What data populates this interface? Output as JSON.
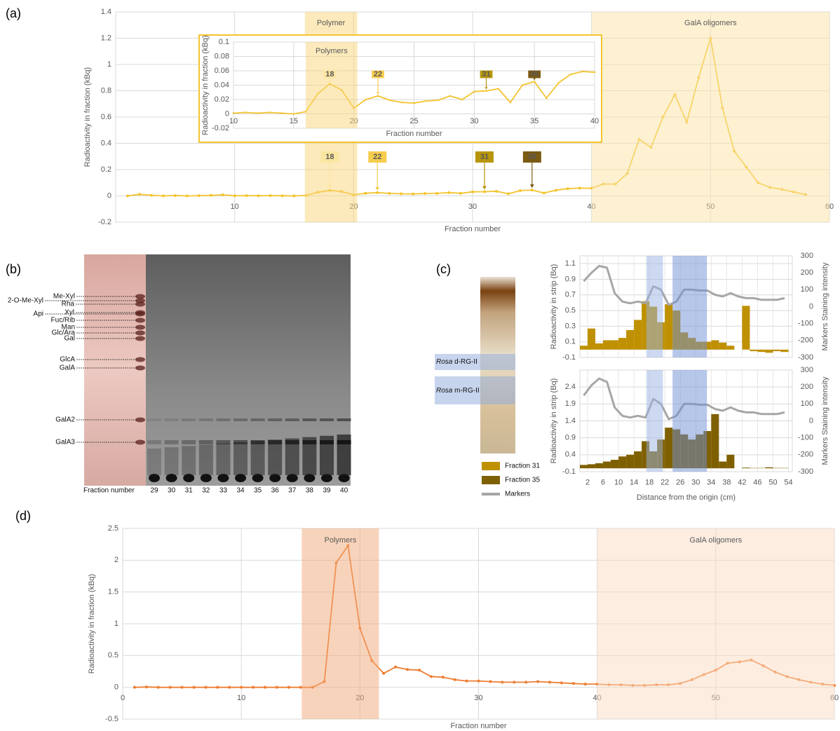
{
  "panels": {
    "labels": [
      "(a)",
      "(b)",
      "(c)",
      "(d)"
    ],
    "tlc": {
      "markers": [
        "Me-Xyl",
        "2-O-Me-Xyl",
        "Rha",
        "Xyl",
        "Api",
        "Fuc/Rib",
        "Man",
        "Glc/Ara",
        "Gal",
        "GlcA",
        "GalA",
        "GalA2",
        "GalA3"
      ],
      "x_label": "Fraction number",
      "lanes": [
        "29",
        "30",
        "31",
        "32",
        "33",
        "34",
        "35",
        "36",
        "37",
        "38",
        "39",
        "40"
      ]
    },
    "gel": {
      "bands": [
        {
          "italic": "Rosa",
          "text": "d-RG-II"
        },
        {
          "italic": "Rosa",
          "text": "m-RG-II"
        }
      ]
    }
  },
  "chart_data": [
    {
      "type": "line",
      "x_label": "Fraction number",
      "y_label": "Radioactivity in fraction (kBq)",
      "x": [
        1,
        2,
        3,
        4,
        5,
        6,
        7,
        8,
        9,
        10,
        11,
        12,
        13,
        14,
        15,
        16,
        17,
        18,
        19,
        20,
        21,
        22,
        23,
        24,
        25,
        26,
        27,
        28,
        29,
        30,
        31,
        32,
        33,
        34,
        35,
        36,
        37,
        38,
        39,
        40,
        41,
        42,
        43,
        44,
        45,
        46,
        47,
        48,
        49,
        50,
        51,
        52,
        53,
        54,
        55,
        56,
        57,
        58
      ],
      "series": [
        {
          "color": "#f4c430",
          "values": [
            0,
            0.012,
            0.005,
            0,
            0.003,
            0,
            0.002,
            0.004,
            0.008,
            0.001,
            0.002,
            0.001,
            0.002,
            0.001,
            0,
            0.003,
            0.028,
            0.042,
            0.033,
            0.008,
            0.02,
            0.025,
            0.019,
            0.016,
            0.015,
            0.018,
            0.019,
            0.025,
            0.02,
            0.031,
            0.032,
            0.035,
            0.016,
            0.04,
            0.045,
            0.022,
            0.043,
            0.055,
            0.059,
            0.058,
            0.09,
            0.09,
            0.17,
            0.43,
            0.37,
            0.6,
            0.77,
            0.56,
            0.9,
            1.2,
            0.67,
            0.34,
            0.22,
            0.1,
            0.065,
            0.05,
            0.03,
            0.01
          ]
        }
      ],
      "xlim": [
        0,
        60
      ],
      "ylim": [
        -0.2,
        1.4
      ],
      "xticks": [
        10,
        20,
        30,
        40,
        50,
        60
      ],
      "yticks": [
        -0.2,
        0,
        0.2,
        0.4,
        0.6,
        0.8,
        1,
        1.2,
        1.4
      ],
      "grid": true,
      "regions": [
        {
          "label": "Polymer",
          "x": [
            15.9,
            20.3
          ],
          "color": "#f9d67a"
        },
        {
          "label": "GalA oligomers",
          "x": [
            40,
            60
          ],
          "color": "#fbe3a5"
        }
      ],
      "annotations": [
        {
          "label": "18",
          "x": 18,
          "color": "#fbe6a0"
        },
        {
          "label": "22",
          "x": 22,
          "color": "#f7cd4f"
        },
        {
          "label": "31",
          "x": 31,
          "color": "#b8960c"
        },
        {
          "label": "35",
          "x": 35,
          "color": "#7b5a12"
        }
      ]
    },
    {
      "type": "line",
      "x_label": "Fraction number",
      "y_label": "Radioactivity in fraction (kBq)",
      "x": [
        10,
        11,
        12,
        13,
        14,
        15,
        16,
        17,
        18,
        19,
        20,
        21,
        22,
        23,
        24,
        25,
        26,
        27,
        28,
        29,
        30,
        31,
        32,
        33,
        34,
        35,
        36,
        37,
        38,
        39,
        40
      ],
      "series": [
        {
          "color": "#f4c430",
          "values": [
            0.001,
            0.002,
            0.001,
            0.002,
            0.001,
            0,
            0.003,
            0.028,
            0.042,
            0.033,
            0.008,
            0.02,
            0.025,
            0.019,
            0.016,
            0.015,
            0.018,
            0.019,
            0.025,
            0.02,
            0.031,
            0.032,
            0.035,
            0.016,
            0.04,
            0.045,
            0.022,
            0.043,
            0.055,
            0.059,
            0.058
          ]
        }
      ],
      "xlim": [
        10,
        40
      ],
      "ylim": [
        -0.02,
        0.1
      ],
      "xticks": [
        10,
        15,
        20,
        25,
        30,
        35,
        40
      ],
      "yticks": [
        -0.02,
        0,
        0.02,
        0.04,
        0.06,
        0.08,
        0.1
      ],
      "grid": true,
      "regions": [
        {
          "label": "Polymers",
          "x": [
            16,
            20.3
          ],
          "color": "#f9d67a"
        }
      ],
      "annotations": [
        {
          "label": "18",
          "x": 18,
          "color": "#fbe6a0"
        },
        {
          "label": "22",
          "x": 22,
          "color": "#f7cd4f"
        },
        {
          "label": "31",
          "x": 31,
          "color": "#b8960c"
        },
        {
          "label": "35",
          "x": 35,
          "color": "#7b5a12"
        }
      ]
    },
    {
      "type": "bar",
      "y_label": "Radioactivity in strip (Bq)",
      "y2_label": "Markers Staining intensity",
      "x": [
        1,
        3,
        5,
        7,
        9,
        11,
        13,
        15,
        17,
        19,
        21,
        23,
        25,
        27,
        29,
        31,
        33,
        35,
        37,
        39,
        41,
        43,
        45,
        47,
        49,
        51,
        53
      ],
      "series": [
        {
          "name": "Fraction 31",
          "color": "#bf9000",
          "values": [
            0.05,
            0.27,
            0.08,
            0.12,
            0.12,
            0.15,
            0.25,
            0.38,
            0.62,
            0.55,
            0.35,
            0.58,
            0.5,
            0.22,
            0.15,
            0.1,
            0.1,
            0.12,
            0.09,
            0.05,
            0,
            0.56,
            -0.02,
            -0.03,
            -0.04,
            -0.02,
            -0.03
          ]
        },
        {
          "name": "Markers",
          "type": "line",
          "axis": "y2",
          "color": "#a6a6a6",
          "values": [
            150,
            200,
            240,
            230,
            80,
            30,
            20,
            30,
            20,
            120,
            100,
            10,
            30,
            100,
            100,
            95,
            95,
            70,
            60,
            80,
            60,
            50,
            50,
            40,
            40,
            40,
            50
          ]
        }
      ],
      "xlim": [
        0,
        55
      ],
      "ylim": [
        -0.1,
        1.2
      ],
      "yticks": [
        -0.1,
        0.1,
        0.3,
        0.5,
        0.7,
        0.9,
        1.1
      ],
      "y2lim": [
        -300,
        300
      ],
      "y2ticks": [
        -300,
        -200,
        -100,
        0,
        100,
        200,
        300
      ],
      "grid": true,
      "regions": [
        {
          "x": [
            17.2,
            21.5
          ],
          "color": "#9bb3e3"
        },
        {
          "x": [
            24,
            32.9
          ],
          "color": "#6f90d6"
        }
      ]
    },
    {
      "type": "bar",
      "x_label": "Distance from the origin (cm)",
      "y_label": "Radioactivity in strip (Bq)",
      "y2_label": "Markers Staining intensity",
      "x": [
        1,
        3,
        5,
        7,
        9,
        11,
        13,
        15,
        17,
        19,
        21,
        23,
        25,
        27,
        29,
        31,
        33,
        35,
        37,
        39,
        41,
        43,
        45,
        47,
        49,
        51,
        53
      ],
      "series": [
        {
          "name": "Fraction 35",
          "color": "#7f6000",
          "values": [
            0.1,
            0.12,
            0.15,
            0.2,
            0.25,
            0.35,
            0.4,
            0.5,
            0.8,
            0.5,
            0.85,
            1.2,
            1.15,
            1,
            0.85,
            1,
            1.1,
            1.6,
            0.2,
            0.4,
            0,
            0.02,
            0.01,
            0.01,
            0.03,
            0.01,
            0.01
          ]
        },
        {
          "type": "line",
          "axis": "y2",
          "color": "#a6a6a6",
          "values": [
            150,
            210,
            250,
            230,
            80,
            30,
            20,
            30,
            20,
            130,
            100,
            10,
            30,
            100,
            100,
            95,
            95,
            70,
            60,
            80,
            60,
            50,
            50,
            40,
            40,
            40,
            50
          ]
        }
      ],
      "xlim": [
        0,
        55
      ],
      "ylim": [
        -0.1,
        2.9
      ],
      "xticks": [
        2,
        6,
        10,
        14,
        18,
        22,
        26,
        30,
        34,
        38,
        42,
        46,
        50,
        54
      ],
      "yticks": [
        -0.1,
        0.4,
        0.9,
        1.4,
        1.9,
        2.4
      ],
      "y2lim": [
        -300,
        300
      ],
      "y2ticks": [
        -300,
        -200,
        -100,
        0,
        100,
        200,
        300
      ],
      "grid": true,
      "regions": [
        {
          "x": [
            17.2,
            21.5
          ],
          "color": "#9bb3e3"
        },
        {
          "x": [
            24,
            32.9
          ],
          "color": "#6f90d6"
        }
      ]
    },
    {
      "type": "line",
      "x_label": "Fraction number",
      "y_label": "Radioactivity in fraction (kBq)",
      "x": [
        1,
        2,
        3,
        4,
        5,
        6,
        7,
        8,
        9,
        10,
        11,
        12,
        13,
        14,
        15,
        16,
        17,
        18,
        19,
        20,
        21,
        22,
        23,
        24,
        25,
        26,
        27,
        28,
        29,
        30,
        31,
        32,
        33,
        34,
        35,
        36,
        37,
        38,
        39,
        40,
        41,
        42,
        43,
        44,
        45,
        46,
        47,
        48,
        49,
        50,
        51,
        52,
        53,
        54,
        55,
        56,
        57,
        58,
        59,
        60
      ],
      "series": [
        {
          "color": "#ed7d31",
          "values": [
            0,
            0.005,
            0,
            0,
            0,
            0,
            0,
            0,
            0,
            0,
            0,
            0,
            0,
            0,
            0,
            0,
            0.09,
            1.96,
            2.23,
            0.93,
            0.42,
            0.22,
            0.32,
            0.28,
            0.27,
            0.17,
            0.16,
            0.12,
            0.1,
            0.1,
            0.09,
            0.08,
            0.08,
            0.08,
            0.09,
            0.08,
            0.07,
            0.06,
            0.05,
            0.05,
            0.04,
            0.04,
            0.03,
            0.03,
            0.04,
            0.04,
            0.06,
            0.12,
            0.2,
            0.27,
            0.38,
            0.4,
            0.43,
            0.34,
            0.24,
            0.17,
            0.12,
            0.08,
            0.05,
            0.03
          ]
        }
      ],
      "xlim": [
        0,
        60
      ],
      "ylim": [
        -0.5,
        2.5
      ],
      "xticks": [
        0,
        10,
        20,
        30,
        40,
        50,
        60
      ],
      "yticks": [
        -0.5,
        0,
        0.5,
        1,
        1.5,
        2,
        2.5
      ],
      "grid": true,
      "regions": [
        {
          "label": "Polymers",
          "x": [
            15.1,
            21.6
          ],
          "color": "#f2a878"
        },
        {
          "label": "GalA oligomers",
          "x": [
            40,
            60
          ],
          "color": "#fbdcc4"
        }
      ]
    }
  ]
}
